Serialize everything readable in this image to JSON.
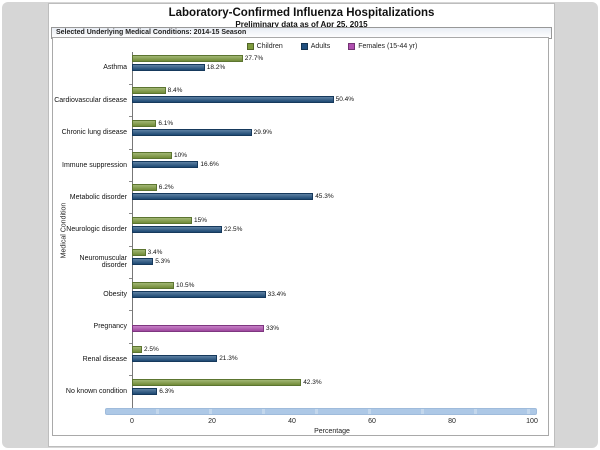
{
  "header": {
    "title": "Laboratory-Confirmed Influenza Hospitalizations",
    "subtitle": "Preliminary data as of Apr 25, 2015",
    "panel_header": "Selected Underlying Medical Conditions: 2014-15 Season"
  },
  "chart_data": {
    "type": "bar",
    "orientation": "horizontal",
    "title": "Laboratory-Confirmed Influenza Hospitalizations",
    "subtitle": "Preliminary data as of Apr 25, 2015",
    "xlabel": "Percentage",
    "ylabel": "Medical Condition",
    "xlim": [
      0,
      100
    ],
    "xticks": [
      0,
      20,
      40,
      60,
      80,
      100
    ],
    "grid": false,
    "legend_position": "top-center",
    "legend": [
      {
        "name": "Children",
        "color": "#7e9b3e",
        "border": "#5c7530"
      },
      {
        "name": "Adults",
        "color": "#20507f",
        "border": "#16395c"
      },
      {
        "name": "Females (15-44 yr)",
        "color": "#b04fb0",
        "border": "#7e3680"
      }
    ],
    "rows": [
      {
        "category": "Asthma",
        "bars": [
          {
            "series": "Children",
            "value": 27.7,
            "label": "27.7%"
          },
          {
            "series": "Adults",
            "value": 18.2,
            "label": "18.2%"
          }
        ]
      },
      {
        "category": "Cardiovascular disease",
        "bars": [
          {
            "series": "Children",
            "value": 8.4,
            "label": "8.4%"
          },
          {
            "series": "Adults",
            "value": 50.4,
            "label": "50.4%"
          }
        ]
      },
      {
        "category": "Chronic lung disease",
        "bars": [
          {
            "series": "Children",
            "value": 6.1,
            "label": "6.1%"
          },
          {
            "series": "Adults",
            "value": 29.9,
            "label": "29.9%"
          }
        ]
      },
      {
        "category": "Immune suppression",
        "bars": [
          {
            "series": "Children",
            "value": 10,
            "label": "10%"
          },
          {
            "series": "Adults",
            "value": 16.6,
            "label": "16.6%"
          }
        ]
      },
      {
        "category": "Metabolic disorder",
        "bars": [
          {
            "series": "Children",
            "value": 6.2,
            "label": "6.2%"
          },
          {
            "series": "Adults",
            "value": 45.3,
            "label": "45.3%"
          }
        ]
      },
      {
        "category": "Neurologic disorder",
        "bars": [
          {
            "series": "Children",
            "value": 15,
            "label": "15%"
          },
          {
            "series": "Adults",
            "value": 22.5,
            "label": "22.5%"
          }
        ]
      },
      {
        "category": "Neuromuscular disorder",
        "bars": [
          {
            "series": "Children",
            "value": 3.4,
            "label": "3.4%"
          },
          {
            "series": "Adults",
            "value": 5.3,
            "label": "5.3%"
          }
        ]
      },
      {
        "category": "Obesity",
        "bars": [
          {
            "series": "Children",
            "value": 10.5,
            "label": "10.5%"
          },
          {
            "series": "Adults",
            "value": 33.4,
            "label": "33.4%"
          }
        ]
      },
      {
        "category": "Pregnancy",
        "bars": [
          {
            "series": "Females (15-44 yr)",
            "value": 33,
            "label": "33%"
          }
        ]
      },
      {
        "category": "Renal disease",
        "bars": [
          {
            "series": "Children",
            "value": 2.5,
            "label": "2.5%"
          },
          {
            "series": "Adults",
            "value": 21.3,
            "label": "21.3%"
          }
        ]
      },
      {
        "category": "No known condition",
        "bars": [
          {
            "series": "Children",
            "value": 42.3,
            "label": "42.3%"
          },
          {
            "series": "Adults",
            "value": 6.3,
            "label": "6.3%"
          }
        ]
      }
    ]
  },
  "scrollbar": {
    "color": "#adc8e6"
  }
}
